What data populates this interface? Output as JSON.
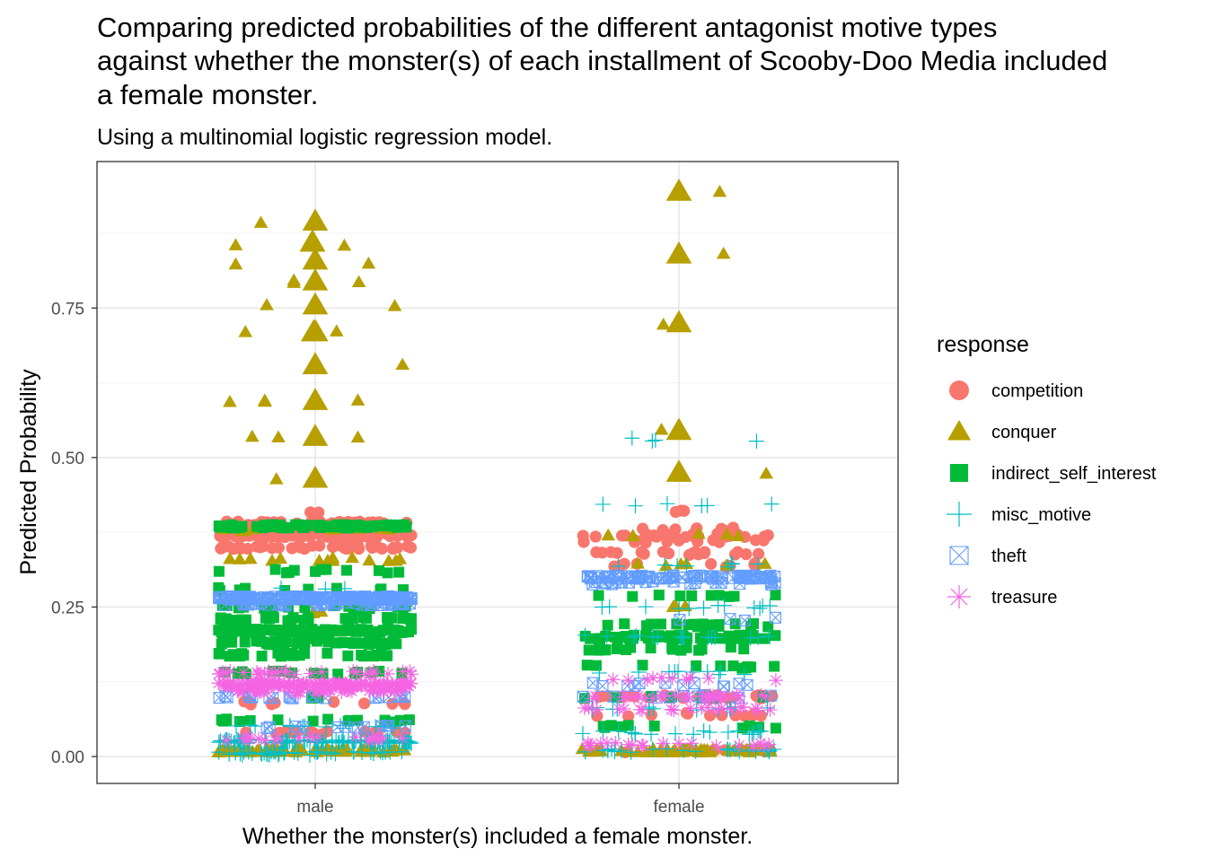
{
  "chart_data": {
    "type": "scatter",
    "title_lines": [
      "Comparing predicted probabilities of the different antagonist motive types",
      "against whether the monster(s) of each installment of Scooby-Doo Media included",
      "a female monster."
    ],
    "subtitle": "Using a multinomial logistic regression model.",
    "xlabel": "Whether the monster(s) included a female monster.",
    "ylabel": "Predicted Probability",
    "categories": [
      "male",
      "female"
    ],
    "y_ticks": [
      0.0,
      0.25,
      0.5,
      0.75
    ],
    "y_tick_labels": [
      "0.00",
      "0.25",
      "0.50",
      "0.75"
    ],
    "ylim": [
      -0.045,
      0.995
    ],
    "grid": true,
    "legend": {
      "title": "response",
      "placement": "right"
    },
    "colors": {
      "competition": "#F8766D",
      "conquer": "#B79F00",
      "indirect_self_interest": "#00BA38",
      "misc_motive": "#00BFC4",
      "theft": "#619CFF",
      "treasure": "#F564E3"
    },
    "series": [
      {
        "name": "competition",
        "shape": "circle",
        "points": [
          {
            "x": "male",
            "y": 0.37,
            "n": 120,
            "spread": 0.7
          },
          {
            "x": "male",
            "y": 0.39,
            "n": 40,
            "spread": 0.7
          },
          {
            "x": "male",
            "y": 0.35,
            "n": 40,
            "spread": 0.7
          },
          {
            "x": "male",
            "y": 0.41,
            "n": 2,
            "spread": 0.04
          },
          {
            "x": "male",
            "y": 0.04,
            "n": 18,
            "spread": 0.7
          },
          {
            "x": "male",
            "y": 0.09,
            "n": 10,
            "spread": 0.7
          },
          {
            "x": "female",
            "y": 0.37,
            "n": 24,
            "spread": 0.7
          },
          {
            "x": "female",
            "y": 0.34,
            "n": 18,
            "spread": 0.7
          },
          {
            "x": "female",
            "y": 0.32,
            "n": 10,
            "spread": 0.7
          },
          {
            "x": "female",
            "y": 0.36,
            "n": 12,
            "spread": 0.7
          },
          {
            "x": "female",
            "y": 0.38,
            "n": 8,
            "spread": 0.4
          },
          {
            "x": "female",
            "y": 0.41,
            "n": 3,
            "spread": 0.04
          },
          {
            "x": "female",
            "y": 0.1,
            "n": 22,
            "spread": 0.7
          },
          {
            "x": "female",
            "y": 0.07,
            "n": 12,
            "spread": 0.7
          },
          {
            "x": "female",
            "y": 0.01,
            "n": 10,
            "spread": 0.7
          }
        ]
      },
      {
        "name": "conquer",
        "shape": "triangle",
        "points": [
          {
            "x": "male",
            "y": 0.895,
            "n": 1,
            "spread": 0,
            "big": true
          },
          {
            "x": "male",
            "y": 0.86,
            "n": 2,
            "spread": 0.02,
            "big": true
          },
          {
            "x": "male",
            "y": 0.83,
            "n": 1,
            "spread": 0,
            "big": true
          },
          {
            "x": "male",
            "y": 0.795,
            "n": 1,
            "spread": 0,
            "big": true
          },
          {
            "x": "male",
            "y": 0.755,
            "n": 1,
            "spread": 0,
            "big": true
          },
          {
            "x": "male",
            "y": 0.71,
            "n": 2,
            "spread": 0.02,
            "big": true
          },
          {
            "x": "male",
            "y": 0.655,
            "n": 1,
            "spread": 0,
            "big": true
          },
          {
            "x": "male",
            "y": 0.595,
            "n": 1,
            "spread": 0,
            "big": true
          },
          {
            "x": "male",
            "y": 0.535,
            "n": 1,
            "spread": 0,
            "big": true
          },
          {
            "x": "male",
            "y": 0.465,
            "n": 1,
            "spread": 0,
            "big": true
          },
          {
            "x": "male",
            "y": 0.895,
            "n": 1,
            "spread": 0,
            "at": -0.56
          },
          {
            "x": "male",
            "y": 0.855,
            "n": 1,
            "spread": 0,
            "at": -0.82
          },
          {
            "x": "male",
            "y": 0.855,
            "n": 1,
            "spread": 0,
            "at": 0.3
          },
          {
            "x": "male",
            "y": 0.825,
            "n": 1,
            "spread": 0,
            "at": -0.82
          },
          {
            "x": "male",
            "y": 0.825,
            "n": 1,
            "spread": 0,
            "at": 0.55
          },
          {
            "x": "male",
            "y": 0.795,
            "n": 2,
            "spread": 0.08,
            "at": -0.22
          },
          {
            "x": "male",
            "y": 0.795,
            "n": 1,
            "spread": 0,
            "at": 0.45
          },
          {
            "x": "male",
            "y": 0.755,
            "n": 1,
            "spread": 0,
            "at": -0.5
          },
          {
            "x": "male",
            "y": 0.755,
            "n": 1,
            "spread": 0,
            "at": 0.82
          },
          {
            "x": "male",
            "y": 0.71,
            "n": 1,
            "spread": 0,
            "at": -0.72
          },
          {
            "x": "male",
            "y": 0.71,
            "n": 1,
            "spread": 0,
            "at": 0.22
          },
          {
            "x": "male",
            "y": 0.655,
            "n": 1,
            "spread": 0,
            "at": 0.9
          },
          {
            "x": "male",
            "y": 0.595,
            "n": 1,
            "spread": 0,
            "at": -0.88
          },
          {
            "x": "male",
            "y": 0.595,
            "n": 2,
            "spread": 0.05,
            "at": -0.52
          },
          {
            "x": "male",
            "y": 0.595,
            "n": 1,
            "spread": 0,
            "at": 0.44
          },
          {
            "x": "male",
            "y": 0.535,
            "n": 1,
            "spread": 0,
            "at": -0.65
          },
          {
            "x": "male",
            "y": 0.535,
            "n": 1,
            "spread": 0,
            "at": -0.38
          },
          {
            "x": "male",
            "y": 0.535,
            "n": 1,
            "spread": 0,
            "at": 0.44
          },
          {
            "x": "male",
            "y": 0.465,
            "n": 1,
            "spread": 0,
            "at": -0.4
          },
          {
            "x": "male",
            "y": 0.33,
            "n": 14,
            "spread": 0.7
          },
          {
            "x": "male",
            "y": 0.38,
            "n": 10,
            "spread": 0.7
          },
          {
            "x": "male",
            "y": 0.01,
            "n": 70,
            "spread": 0.7
          },
          {
            "x": "male",
            "y": 0.24,
            "n": 3,
            "spread": 0.05
          },
          {
            "x": "female",
            "y": 0.945,
            "n": 1,
            "spread": 0,
            "big": true
          },
          {
            "x": "female",
            "y": 0.84,
            "n": 1,
            "spread": 0,
            "big": true
          },
          {
            "x": "female",
            "y": 0.725,
            "n": 1,
            "spread": 0,
            "big": true
          },
          {
            "x": "female",
            "y": 0.545,
            "n": 1,
            "spread": 0,
            "big": true
          },
          {
            "x": "female",
            "y": 0.475,
            "n": 1,
            "spread": 0,
            "big": true
          },
          {
            "x": "female",
            "y": 0.945,
            "n": 1,
            "spread": 0,
            "at": 0.42
          },
          {
            "x": "female",
            "y": 0.84,
            "n": 1,
            "spread": 0,
            "at": 0.46
          },
          {
            "x": "female",
            "y": 0.725,
            "n": 1,
            "spread": 0,
            "at": -0.16
          },
          {
            "x": "female",
            "y": 0.545,
            "n": 1,
            "spread": 0,
            "at": -0.18
          },
          {
            "x": "female",
            "y": 0.475,
            "n": 1,
            "spread": 0,
            "at": 0.9
          },
          {
            "x": "female",
            "y": 0.01,
            "n": 60,
            "spread": 0.7
          },
          {
            "x": "female",
            "y": 0.25,
            "n": 4,
            "spread": 0.05
          },
          {
            "x": "female",
            "y": 0.37,
            "n": 6,
            "spread": 0.6
          },
          {
            "x": "female",
            "y": 0.32,
            "n": 6,
            "spread": 0.7
          }
        ]
      },
      {
        "name": "indirect_self_interest",
        "shape": "square",
        "points": [
          {
            "x": "male",
            "y": 0.385,
            "n": 60,
            "spread": 0.7
          },
          {
            "x": "male",
            "y": 0.21,
            "n": 100,
            "spread": 0.7
          },
          {
            "x": "male",
            "y": 0.19,
            "n": 40,
            "spread": 0.7
          },
          {
            "x": "male",
            "y": 0.17,
            "n": 30,
            "spread": 0.7
          },
          {
            "x": "male",
            "y": 0.23,
            "n": 30,
            "spread": 0.7
          },
          {
            "x": "male",
            "y": 0.25,
            "n": 20,
            "spread": 0.7
          },
          {
            "x": "male",
            "y": 0.28,
            "n": 10,
            "spread": 0.7
          },
          {
            "x": "male",
            "y": 0.31,
            "n": 12,
            "spread": 0.7
          },
          {
            "x": "male",
            "y": 0.14,
            "n": 15,
            "spread": 0.7
          },
          {
            "x": "male",
            "y": 0.06,
            "n": 18,
            "spread": 0.7
          },
          {
            "x": "male",
            "y": 0.2,
            "n": 30,
            "spread": 0.03
          },
          {
            "x": "male",
            "y": 0.1,
            "n": 20,
            "spread": 0.03
          },
          {
            "x": "female",
            "y": 0.2,
            "n": 50,
            "spread": 0.7
          },
          {
            "x": "female",
            "y": 0.22,
            "n": 20,
            "spread": 0.7
          },
          {
            "x": "female",
            "y": 0.18,
            "n": 20,
            "spread": 0.7
          },
          {
            "x": "female",
            "y": 0.15,
            "n": 12,
            "spread": 0.7
          },
          {
            "x": "female",
            "y": 0.27,
            "n": 10,
            "spread": 0.7
          },
          {
            "x": "female",
            "y": 0.1,
            "n": 10,
            "spread": 0.7
          },
          {
            "x": "female",
            "y": 0.2,
            "n": 30,
            "spread": 0.03
          },
          {
            "x": "female",
            "y": 0.05,
            "n": 10,
            "spread": 0.7
          }
        ]
      },
      {
        "name": "misc_motive",
        "shape": "plus",
        "points": [
          {
            "x": "male",
            "y": 0.025,
            "n": 120,
            "spread": 0.7
          },
          {
            "x": "male",
            "y": 0.005,
            "n": 40,
            "spread": 0.7
          },
          {
            "x": "male",
            "y": 0.05,
            "n": 15,
            "spread": 0.7
          },
          {
            "x": "male",
            "y": 0.28,
            "n": 3,
            "spread": 0.3
          },
          {
            "x": "female",
            "y": 0.53,
            "n": 4,
            "spread": 0.7
          },
          {
            "x": "female",
            "y": 0.42,
            "n": 6,
            "spread": 0.7
          },
          {
            "x": "female",
            "y": 0.32,
            "n": 8,
            "spread": 0.7
          },
          {
            "x": "female",
            "y": 0.25,
            "n": 12,
            "spread": 0.7
          },
          {
            "x": "female",
            "y": 0.2,
            "n": 15,
            "spread": 0.7
          },
          {
            "x": "female",
            "y": 0.14,
            "n": 10,
            "spread": 0.7
          },
          {
            "x": "female",
            "y": 0.08,
            "n": 15,
            "spread": 0.7
          },
          {
            "x": "female",
            "y": 0.04,
            "n": 20,
            "spread": 0.7
          },
          {
            "x": "female",
            "y": 0.01,
            "n": 25,
            "spread": 0.7
          }
        ]
      },
      {
        "name": "theft",
        "shape": "square_x",
        "points": [
          {
            "x": "male",
            "y": 0.265,
            "n": 160,
            "spread": 0.7
          },
          {
            "x": "male",
            "y": 0.255,
            "n": 40,
            "spread": 0.7
          },
          {
            "x": "male",
            "y": 0.1,
            "n": 20,
            "spread": 0.7
          },
          {
            "x": "male",
            "y": 0.05,
            "n": 12,
            "spread": 0.7
          },
          {
            "x": "female",
            "y": 0.3,
            "n": 80,
            "spread": 0.7
          },
          {
            "x": "female",
            "y": 0.29,
            "n": 20,
            "spread": 0.7
          },
          {
            "x": "female",
            "y": 0.12,
            "n": 12,
            "spread": 0.7
          },
          {
            "x": "female",
            "y": 0.1,
            "n": 10,
            "spread": 0.7
          },
          {
            "x": "female",
            "y": 0.23,
            "n": 4,
            "spread": 0.7
          }
        ]
      },
      {
        "name": "treasure",
        "shape": "asterisk",
        "points": [
          {
            "x": "male",
            "y": 0.12,
            "n": 150,
            "spread": 0.7
          },
          {
            "x": "male",
            "y": 0.11,
            "n": 40,
            "spread": 0.7
          },
          {
            "x": "male",
            "y": 0.14,
            "n": 30,
            "spread": 0.7
          },
          {
            "x": "male",
            "y": 0.03,
            "n": 20,
            "spread": 0.7
          },
          {
            "x": "female",
            "y": 0.1,
            "n": 30,
            "spread": 0.7
          },
          {
            "x": "female",
            "y": 0.08,
            "n": 20,
            "spread": 0.7
          },
          {
            "x": "female",
            "y": 0.02,
            "n": 20,
            "spread": 0.7
          },
          {
            "x": "female",
            "y": 0.13,
            "n": 10,
            "spread": 0.7
          }
        ]
      }
    ]
  }
}
